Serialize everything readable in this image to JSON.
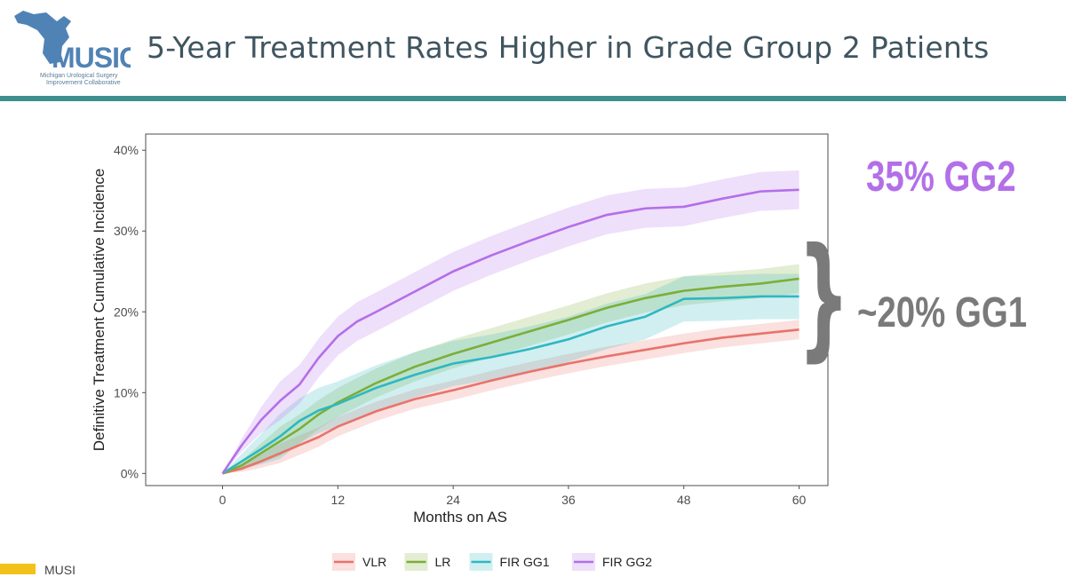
{
  "header": {
    "title": "5-Year Treatment Rates Higher in Grade Group 2 Patients",
    "logo": {
      "wordmark": "MUSIC",
      "tagline_line1": "Michigan Urological Surgery",
      "tagline_line2": "Improvement Collaborative"
    }
  },
  "annotations": {
    "gg2": "35% GG2",
    "gg1": "~20% GG1"
  },
  "footer": {
    "text": "MUSI"
  },
  "colors": {
    "accent_rule": "#3d8f8d",
    "title_text": "#3f5560",
    "VLR": "#e8736b",
    "LR": "#7cae38",
    "FIR GG1": "#2fb7c1",
    "FIR GG2": "#b36fe8"
  },
  "chart_data": {
    "type": "line",
    "xlabel": "Months on AS",
    "ylabel": "Definitive Treatment Cumulative Incidence",
    "xlim": [
      -8,
      63
    ],
    "ylim": [
      -1.5,
      42
    ],
    "xticks": [
      0,
      12,
      24,
      36,
      48,
      60
    ],
    "yticks": [
      0,
      10,
      20,
      30,
      40
    ],
    "ytick_labels": [
      "0%",
      "10%",
      "20%",
      "30%",
      "40%"
    ],
    "grid": false,
    "legend_position": "bottom",
    "series": [
      {
        "name": "VLR",
        "x": [
          0,
          2,
          4,
          6,
          8,
          10,
          12,
          16,
          20,
          24,
          28,
          32,
          36,
          40,
          44,
          48,
          52,
          56,
          60
        ],
        "y": [
          0,
          0.6,
          1.5,
          2.5,
          3.5,
          4.5,
          5.8,
          7.7,
          9.2,
          10.3,
          11.5,
          12.6,
          13.6,
          14.5,
          15.3,
          16.1,
          16.8,
          17.3,
          17.8
        ],
        "band": 1.2
      },
      {
        "name": "LR",
        "x": [
          0,
          2,
          4,
          6,
          8,
          10,
          12,
          16,
          20,
          24,
          28,
          32,
          36,
          40,
          44,
          48,
          52,
          56,
          60
        ],
        "y": [
          0,
          1.0,
          2.5,
          4.0,
          5.5,
          7.3,
          8.8,
          11.2,
          13.2,
          14.8,
          16.2,
          17.6,
          19.0,
          20.5,
          21.7,
          22.6,
          23.1,
          23.5,
          24.1
        ],
        "band": 1.8
      },
      {
        "name": "FIR GG1",
        "x": [
          0,
          2,
          4,
          6,
          8,
          10,
          12,
          16,
          20,
          24,
          28,
          32,
          36,
          40,
          44,
          48,
          52,
          56,
          60
        ],
        "y": [
          0,
          1.5,
          3.0,
          4.6,
          6.5,
          7.8,
          8.6,
          10.6,
          12.2,
          13.6,
          14.4,
          15.4,
          16.6,
          18.2,
          19.4,
          21.6,
          21.7,
          21.9,
          21.9
        ],
        "band": 2.8
      },
      {
        "name": "FIR GG2",
        "x": [
          0,
          2,
          4,
          6,
          8,
          10,
          12,
          14,
          16,
          20,
          24,
          28,
          32,
          36,
          40,
          44,
          48,
          52,
          56,
          60
        ],
        "y": [
          0,
          3.5,
          6.6,
          9.0,
          11.0,
          14.3,
          17.0,
          18.8,
          20.0,
          22.5,
          25.0,
          27.0,
          28.8,
          30.5,
          32.0,
          32.8,
          33.0,
          34.0,
          34.9,
          35.1
        ],
        "band": 2.4
      }
    ]
  }
}
